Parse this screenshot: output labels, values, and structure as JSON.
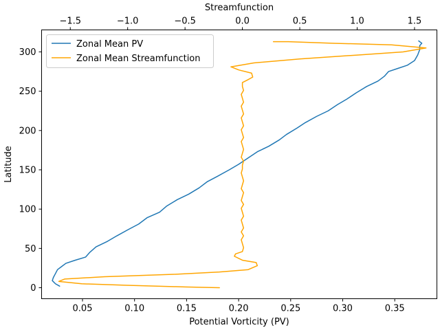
{
  "chart_data": {
    "type": "line",
    "xlabel": "Potential Vorticity (PV)",
    "x2label": "Streamfunction",
    "ylabel": "Latitude",
    "xlim": [
      0.0107,
      0.3905
    ],
    "x2lim": [
      -1.75,
      1.695
    ],
    "ylim": [
      -14,
      328
    ],
    "xticks": [
      0.05,
      0.1,
      0.15,
      0.2,
      0.25,
      0.3,
      0.35
    ],
    "xtick_labels": [
      "0.05",
      "0.10",
      "0.15",
      "0.20",
      "0.25",
      "0.30",
      "0.35"
    ],
    "x2ticks": [
      -1.5,
      -1.0,
      -0.5,
      0.0,
      0.5,
      1.0,
      1.5
    ],
    "x2tick_labels": [
      "−1.5",
      "−1.0",
      "−0.5",
      "0.0",
      "0.5",
      "1.0",
      "1.5"
    ],
    "yticks": [
      0,
      50,
      100,
      150,
      200,
      250,
      300
    ],
    "ytick_labels": [
      "0",
      "50",
      "100",
      "150",
      "200",
      "250",
      "300"
    ],
    "legend_placement": "top-left",
    "grid": false,
    "series": [
      {
        "name": "Zonal Mean PV",
        "axis": "bottom",
        "color": "#1f77b4",
        "points": [
          [
            0.028,
            2
          ],
          [
            0.024,
            5
          ],
          [
            0.021,
            9
          ],
          [
            0.022,
            13
          ],
          [
            0.024,
            18
          ],
          [
            0.026,
            23
          ],
          [
            0.03,
            27
          ],
          [
            0.034,
            31
          ],
          [
            0.043,
            35
          ],
          [
            0.053,
            39
          ],
          [
            0.057,
            45
          ],
          [
            0.063,
            52
          ],
          [
            0.074,
            59
          ],
          [
            0.083,
            66
          ],
          [
            0.094,
            74
          ],
          [
            0.104,
            81
          ],
          [
            0.112,
            89
          ],
          [
            0.124,
            96
          ],
          [
            0.131,
            104
          ],
          [
            0.141,
            112
          ],
          [
            0.152,
            119
          ],
          [
            0.162,
            127
          ],
          [
            0.17,
            135
          ],
          [
            0.18,
            142
          ],
          [
            0.191,
            150
          ],
          [
            0.2,
            157
          ],
          [
            0.209,
            165
          ],
          [
            0.218,
            173
          ],
          [
            0.229,
            180
          ],
          [
            0.239,
            188
          ],
          [
            0.246,
            195
          ],
          [
            0.256,
            203
          ],
          [
            0.264,
            210
          ],
          [
            0.275,
            218
          ],
          [
            0.286,
            225
          ],
          [
            0.295,
            233
          ],
          [
            0.304,
            240
          ],
          [
            0.313,
            248
          ],
          [
            0.323,
            256
          ],
          [
            0.334,
            263
          ],
          [
            0.34,
            269
          ],
          [
            0.344,
            275
          ],
          [
            0.353,
            279
          ],
          [
            0.362,
            283
          ],
          [
            0.369,
            289
          ],
          [
            0.372,
            296
          ],
          [
            0.374,
            303
          ],
          [
            0.374,
            308
          ],
          [
            0.376,
            311
          ],
          [
            0.373,
            314
          ]
        ]
      },
      {
        "name": "Zonal Mean Streamfunction",
        "axis": "top",
        "color": "#ffa500",
        "points": [
          [
            -0.2,
            0
          ],
          [
            -0.5,
            1
          ],
          [
            -1.0,
            3
          ],
          [
            -1.4,
            5
          ],
          [
            -1.6,
            8
          ],
          [
            -1.55,
            11
          ],
          [
            -1.2,
            14
          ],
          [
            -0.6,
            17
          ],
          [
            -0.2,
            20
          ],
          [
            0.05,
            23
          ],
          [
            0.13,
            28
          ],
          [
            0.12,
            32
          ],
          [
            0.0,
            35
          ],
          [
            -0.07,
            40
          ],
          [
            -0.06,
            43
          ],
          [
            0.0,
            46
          ],
          [
            0.01,
            51
          ],
          [
            0.0,
            56
          ],
          [
            -0.01,
            61
          ],
          [
            0.01,
            66
          ],
          [
            -0.01,
            71
          ],
          [
            0.01,
            76
          ],
          [
            0.0,
            81
          ],
          [
            -0.01,
            86
          ],
          [
            0.01,
            91
          ],
          [
            0.0,
            96
          ],
          [
            -0.01,
            101
          ],
          [
            0.01,
            106
          ],
          [
            -0.01,
            111
          ],
          [
            0.0,
            116
          ],
          [
            0.01,
            121
          ],
          [
            -0.01,
            126
          ],
          [
            0.0,
            131
          ],
          [
            0.01,
            136
          ],
          [
            0.0,
            141
          ],
          [
            -0.01,
            146
          ],
          [
            0.0,
            151
          ],
          [
            0.0,
            156
          ],
          [
            0.01,
            161
          ],
          [
            -0.01,
            166
          ],
          [
            0.0,
            171
          ],
          [
            0.01,
            176
          ],
          [
            0.0,
            181
          ],
          [
            -0.01,
            186
          ],
          [
            0.01,
            191
          ],
          [
            0.0,
            196
          ],
          [
            -0.01,
            201
          ],
          [
            0.01,
            206
          ],
          [
            0.0,
            211
          ],
          [
            -0.01,
            216
          ],
          [
            0.01,
            221
          ],
          [
            0.0,
            226
          ],
          [
            -0.01,
            231
          ],
          [
            0.01,
            236
          ],
          [
            0.0,
            241
          ],
          [
            -0.01,
            246
          ],
          [
            0.01,
            251
          ],
          [
            0.0,
            256
          ],
          [
            0.0,
            261
          ],
          [
            0.04,
            264
          ],
          [
            0.09,
            268
          ],
          [
            0.08,
            273
          ],
          [
            -0.03,
            277
          ],
          [
            -0.1,
            281
          ],
          [
            0.1,
            286
          ],
          [
            0.5,
            291
          ],
          [
            1.0,
            296
          ],
          [
            1.4,
            300
          ],
          [
            1.6,
            305
          ],
          [
            1.3,
            309
          ],
          [
            0.8,
            311
          ],
          [
            0.4,
            313
          ],
          [
            0.27,
            313
          ]
        ]
      }
    ]
  }
}
